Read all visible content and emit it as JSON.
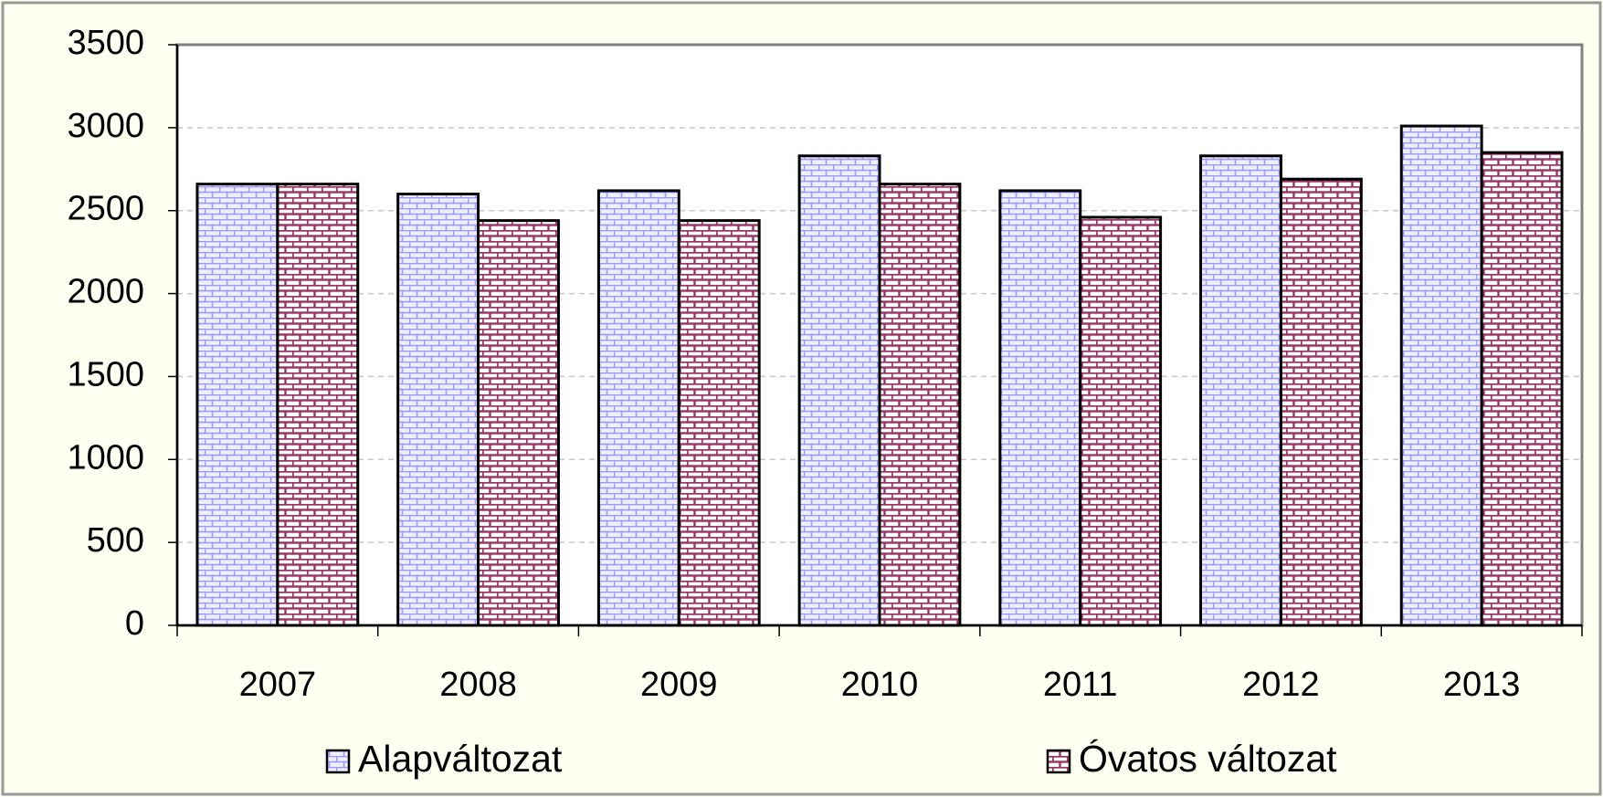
{
  "chart_data": {
    "type": "bar",
    "categories": [
      "2007",
      "2008",
      "2009",
      "2010",
      "2011",
      "2012",
      "2013"
    ],
    "series": [
      {
        "name": "Alapváltozat",
        "color": "#9999ff",
        "values": [
          2660,
          2600,
          2620,
          2830,
          2620,
          2830,
          3010
        ]
      },
      {
        "name": "Óvatos változat",
        "color": "#993366",
        "values": [
          2660,
          2440,
          2440,
          2660,
          2460,
          2690,
          2850
        ]
      }
    ],
    "ylim": [
      0,
      3500
    ],
    "yticks": [
      0,
      500,
      1000,
      1500,
      2000,
      2500,
      3000,
      3500
    ],
    "grid": true,
    "legend": "bottom"
  }
}
